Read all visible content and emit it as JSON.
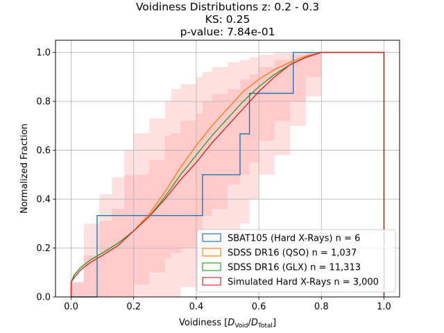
{
  "chart_data": {
    "type": "line",
    "title_lines": [
      "Voidiness Distributions z: 0.2 - 0.3",
      "KS: 0.25",
      "p-value: 7.84e-01"
    ],
    "xlabel": "Voidiness [D_Void/D_Total]",
    "xlabel_parts": {
      "prefix": "Voidiness [",
      "d1": "D",
      "sub1": "Void",
      "slash": "/",
      "d2": "D",
      "sub2": "Total",
      "suffix": "]"
    },
    "ylabel": "Normalized Fraction",
    "xlim": [
      -0.05,
      1.05
    ],
    "ylim": [
      0,
      1.05
    ],
    "xticks": [
      0.0,
      0.2,
      0.4,
      0.6,
      0.8,
      1.0
    ],
    "yticks": [
      0.0,
      0.2,
      0.4,
      0.6,
      0.8,
      1.0
    ],
    "tick_labels_x": [
      "0.0",
      "0.2",
      "0.4",
      "0.6",
      "0.8",
      "1.0"
    ],
    "tick_labels_y": [
      "0.0",
      "0.2",
      "0.4",
      "0.6",
      "0.8",
      "1.0"
    ],
    "grid": true,
    "legend_position": "lower-right",
    "series": [
      {
        "name": "SBAT105 (Hard X-Rays) n = 6",
        "color": "#1f77b4",
        "step": true,
        "points": [
          [
            0.0,
            0.0
          ],
          [
            0.083,
            0.0
          ],
          [
            0.083,
            0.333
          ],
          [
            0.42,
            0.333
          ],
          [
            0.42,
            0.5
          ],
          [
            0.54,
            0.5
          ],
          [
            0.54,
            0.667
          ],
          [
            0.57,
            0.667
          ],
          [
            0.57,
            0.833
          ],
          [
            0.71,
            0.833
          ],
          [
            0.71,
            1.0
          ],
          [
            1.0,
            1.0
          ],
          [
            1.0,
            0.0
          ]
        ]
      },
      {
        "name": "SDSS DR16 (QSO) n = 1,037",
        "color": "#ff7f0e",
        "step": false,
        "points": [
          [
            0.0,
            0.0
          ],
          [
            0.0,
            0.06
          ],
          [
            0.01,
            0.09
          ],
          [
            0.03,
            0.12
          ],
          [
            0.06,
            0.15
          ],
          [
            0.1,
            0.18
          ],
          [
            0.15,
            0.22
          ],
          [
            0.2,
            0.27
          ],
          [
            0.25,
            0.34
          ],
          [
            0.3,
            0.43
          ],
          [
            0.35,
            0.53
          ],
          [
            0.4,
            0.62
          ],
          [
            0.45,
            0.7
          ],
          [
            0.5,
            0.77
          ],
          [
            0.55,
            0.84
          ],
          [
            0.6,
            0.89
          ],
          [
            0.65,
            0.93
          ],
          [
            0.7,
            0.96
          ],
          [
            0.75,
            0.985
          ],
          [
            0.8,
            1.0
          ],
          [
            1.0,
            1.0
          ],
          [
            1.0,
            0.0
          ]
        ]
      },
      {
        "name": "SDSS DR16 (GLX) n = 11,313",
        "color": "#2ca02c",
        "step": false,
        "points": [
          [
            0.0,
            0.0
          ],
          [
            0.0,
            0.06
          ],
          [
            0.01,
            0.09
          ],
          [
            0.03,
            0.12
          ],
          [
            0.06,
            0.15
          ],
          [
            0.1,
            0.18
          ],
          [
            0.15,
            0.22
          ],
          [
            0.2,
            0.27
          ],
          [
            0.25,
            0.33
          ],
          [
            0.3,
            0.41
          ],
          [
            0.35,
            0.5
          ],
          [
            0.4,
            0.58
          ],
          [
            0.45,
            0.66
          ],
          [
            0.5,
            0.73
          ],
          [
            0.55,
            0.8
          ],
          [
            0.6,
            0.86
          ],
          [
            0.65,
            0.91
          ],
          [
            0.7,
            0.95
          ],
          [
            0.75,
            0.98
          ],
          [
            0.8,
            1.0
          ],
          [
            1.0,
            1.0
          ],
          [
            1.0,
            0.0
          ]
        ]
      },
      {
        "name": "Simulated Hard X-Rays n = 3,000",
        "color": "#d62728",
        "step": false,
        "points": [
          [
            0.0,
            0.0
          ],
          [
            0.0,
            0.06
          ],
          [
            0.01,
            0.08
          ],
          [
            0.03,
            0.11
          ],
          [
            0.06,
            0.14
          ],
          [
            0.1,
            0.17
          ],
          [
            0.15,
            0.21
          ],
          [
            0.2,
            0.27
          ],
          [
            0.25,
            0.33
          ],
          [
            0.3,
            0.4
          ],
          [
            0.35,
            0.48
          ],
          [
            0.4,
            0.55
          ],
          [
            0.45,
            0.63
          ],
          [
            0.5,
            0.7
          ],
          [
            0.55,
            0.77
          ],
          [
            0.6,
            0.84
          ],
          [
            0.65,
            0.9
          ],
          [
            0.7,
            0.95
          ],
          [
            0.75,
            0.98
          ],
          [
            0.8,
            1.0
          ],
          [
            1.0,
            1.0
          ],
          [
            1.0,
            0.0
          ]
        ]
      }
    ],
    "bands": [
      {
        "label": "outer",
        "color": "#ff9999",
        "opacity": 0.3,
        "x": [
          0.0,
          0.04,
          0.09,
          0.13,
          0.17,
          0.2,
          0.25,
          0.3,
          0.32,
          0.35,
          0.4,
          0.42,
          0.45,
          0.5,
          0.54,
          0.57,
          0.6,
          0.65,
          0.7,
          0.75,
          0.8
        ],
        "lower": [
          0.0,
          0.0,
          0.0,
          0.0,
          0.0,
          0.0,
          0.0,
          0.0,
          0.0,
          0.04,
          0.12,
          0.12,
          0.2,
          0.24,
          0.3,
          0.4,
          0.5,
          0.58,
          0.7,
          0.82,
          1.0
        ],
        "upper": [
          0.06,
          0.3,
          0.42,
          0.49,
          0.6,
          0.67,
          0.73,
          0.8,
          0.85,
          0.87,
          0.9,
          0.92,
          0.94,
          0.96,
          0.97,
          0.98,
          0.99,
          1.0,
          1.0,
          1.0,
          1.0
        ]
      },
      {
        "label": "inner",
        "color": "#ff9999",
        "opacity": 0.3,
        "x": [
          0.0,
          0.04,
          0.09,
          0.13,
          0.17,
          0.2,
          0.25,
          0.3,
          0.32,
          0.35,
          0.4,
          0.42,
          0.45,
          0.5,
          0.54,
          0.57,
          0.6,
          0.65,
          0.7,
          0.75,
          0.8
        ],
        "lower": [
          0.0,
          0.0,
          0.0,
          0.0,
          0.0,
          0.05,
          0.1,
          0.16,
          0.18,
          0.2,
          0.26,
          0.33,
          0.36,
          0.46,
          0.5,
          0.55,
          0.64,
          0.72,
          0.8,
          0.9,
          1.0
        ],
        "upper": [
          0.06,
          0.17,
          0.31,
          0.36,
          0.5,
          0.5,
          0.56,
          0.66,
          0.67,
          0.72,
          0.75,
          0.8,
          0.83,
          0.85,
          0.89,
          0.91,
          0.94,
          0.97,
          0.99,
          1.0,
          1.0
        ]
      }
    ]
  }
}
